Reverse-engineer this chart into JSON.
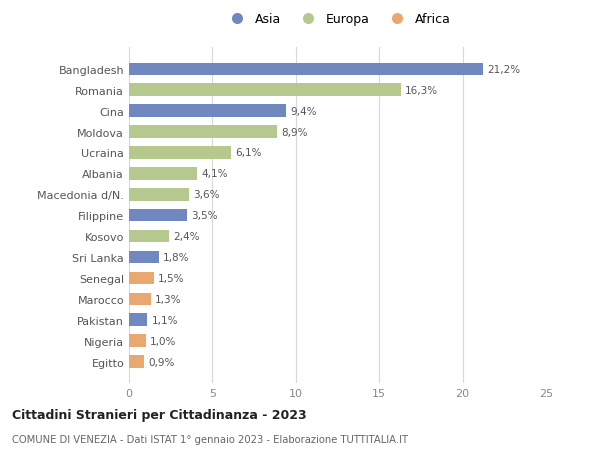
{
  "countries": [
    "Bangladesh",
    "Romania",
    "Cina",
    "Moldova",
    "Ucraina",
    "Albania",
    "Macedonia d/N.",
    "Filippine",
    "Kosovo",
    "Sri Lanka",
    "Senegal",
    "Marocco",
    "Pakistan",
    "Nigeria",
    "Egitto"
  ],
  "values": [
    21.2,
    16.3,
    9.4,
    8.9,
    6.1,
    4.1,
    3.6,
    3.5,
    2.4,
    1.8,
    1.5,
    1.3,
    1.1,
    1.0,
    0.9
  ],
  "labels": [
    "21,2%",
    "16,3%",
    "9,4%",
    "8,9%",
    "6,1%",
    "4,1%",
    "3,6%",
    "3,5%",
    "2,4%",
    "1,8%",
    "1,5%",
    "1,3%",
    "1,1%",
    "1,0%",
    "0,9%"
  ],
  "continents": [
    "Asia",
    "Europa",
    "Asia",
    "Europa",
    "Europa",
    "Europa",
    "Europa",
    "Asia",
    "Europa",
    "Asia",
    "Africa",
    "Africa",
    "Asia",
    "Africa",
    "Africa"
  ],
  "colors": {
    "Asia": "#7088bf",
    "Europa": "#b5c98e",
    "Africa": "#e8a870"
  },
  "legend_order": [
    "Asia",
    "Europa",
    "Africa"
  ],
  "title_main": "Cittadini Stranieri per Cittadinanza - 2023",
  "title_sub": "COMUNE DI VENEZIA - Dati ISTAT 1° gennaio 2023 - Elaborazione TUTTITALIA.IT",
  "xlim": [
    0,
    25
  ],
  "xticks": [
    0,
    5,
    10,
    15,
    20,
    25
  ],
  "background_color": "#ffffff",
  "grid_color": "#d8d8d8",
  "bar_height": 0.6
}
